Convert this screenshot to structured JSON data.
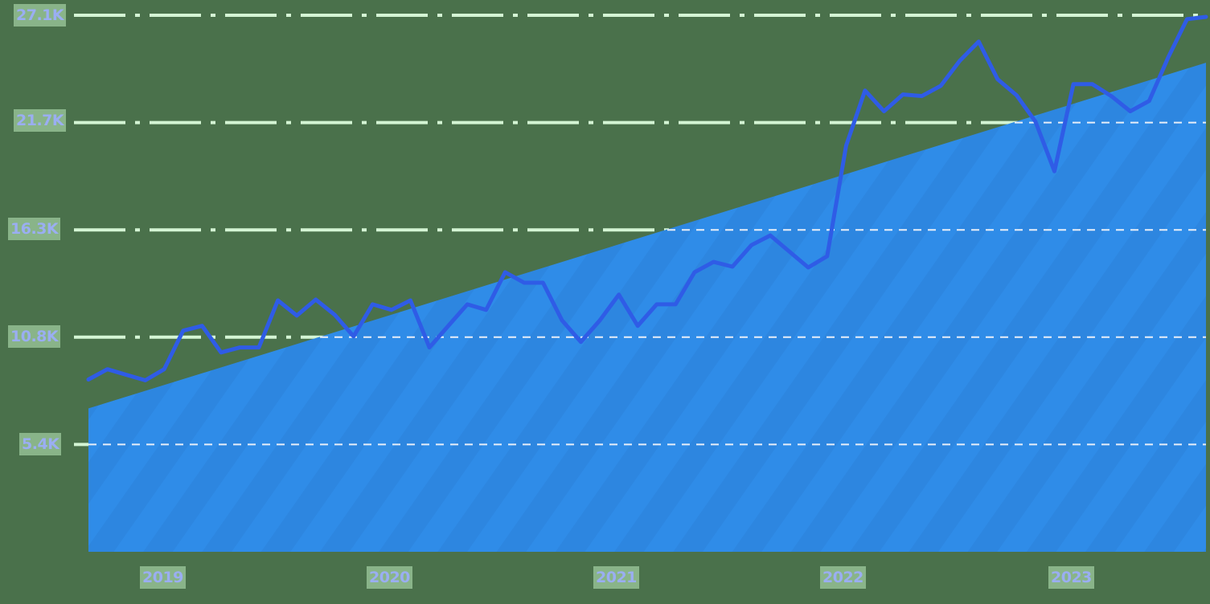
{
  "chart_data": {
    "type": "area",
    "title": "",
    "xlabel": "",
    "ylabel": "",
    "y_ticks": [
      "5.4K",
      "10.8K",
      "16.3K",
      "21.7K",
      "27.1K"
    ],
    "y_tick_values": [
      5420,
      10840,
      16260,
      21680,
      27100
    ],
    "ylim": [
      0,
      27100
    ],
    "x_ticks": [
      "2019",
      "2020",
      "2021",
      "2022",
      "2023"
    ],
    "grid": true,
    "legend": "none",
    "series": [
      {
        "name": "trend-area",
        "kind": "area",
        "color": "#2f8ce8",
        "start_value": 7240,
        "end_value": 24700
      },
      {
        "name": "monthly-line",
        "kind": "line",
        "color": "#2f5ce6",
        "values": [
          8700,
          9220,
          8940,
          8660,
          9220,
          11170,
          11410,
          10070,
          10320,
          10320,
          12700,
          11930,
          12740,
          11970,
          10880,
          12500,
          12220,
          12700,
          10320,
          11410,
          12500,
          12220,
          14120,
          13590,
          13590,
          11690,
          10600,
          11690,
          12990,
          11410,
          12500,
          12500,
          14120,
          14640,
          14400,
          15490,
          15980,
          15170,
          14360,
          14930,
          20510,
          23300,
          22250,
          23100,
          23020,
          23540,
          24800,
          25770,
          23870,
          23060,
          21720,
          19220,
          23620,
          23620,
          23020,
          22250,
          22770,
          24960,
          26900,
          27020
        ]
      }
    ]
  },
  "colors": {
    "background": "#4a714b",
    "area": "#2f8ce8",
    "line": "#2f5ce6",
    "grid_outside": "#d4f5d4",
    "grid_inside": "#e8eef8",
    "label_text": "#9aaef2"
  }
}
